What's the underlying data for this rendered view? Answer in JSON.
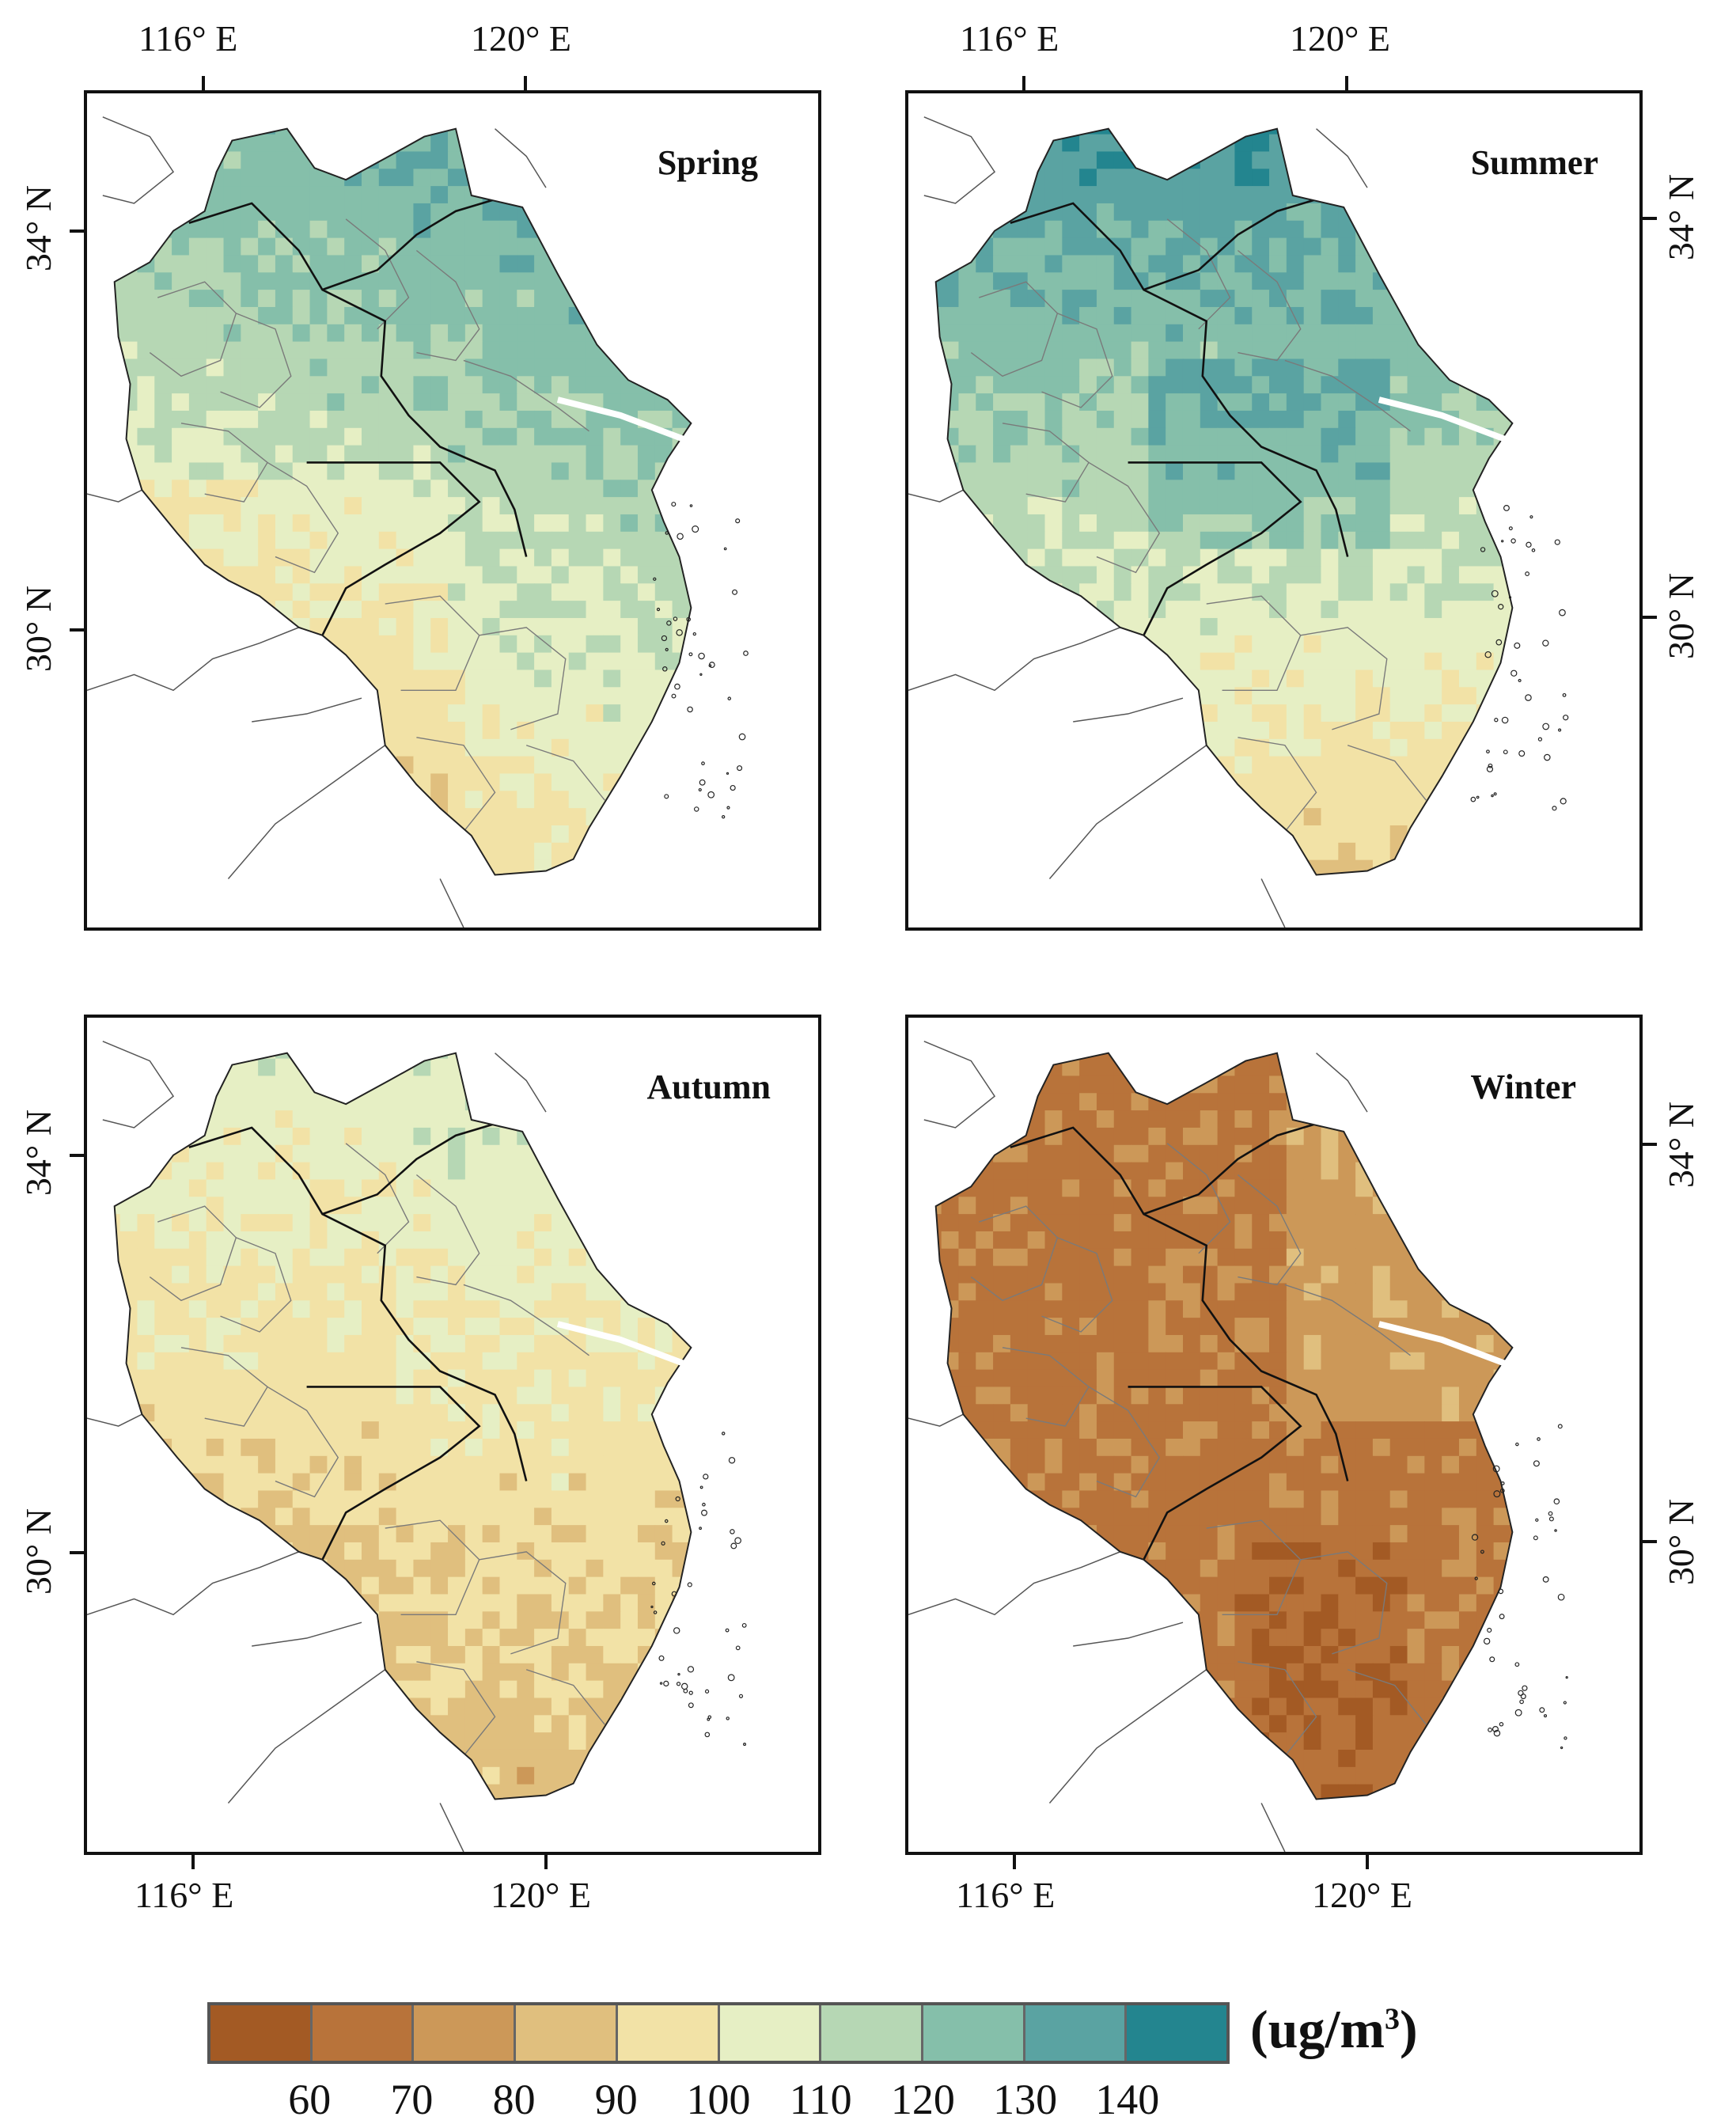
{
  "panels": [
    {
      "id": "spring",
      "season": "Spring",
      "palette_bias": 0
    },
    {
      "id": "summer",
      "season": "Summer",
      "palette_bias": 1
    },
    {
      "id": "autumn",
      "season": "Autumn",
      "palette_bias": 2
    },
    {
      "id": "winter",
      "season": "Winter",
      "palette_bias": 3
    }
  ],
  "axes": {
    "lon_left": "116° E",
    "lon_right": "120° E",
    "lat_top": "34° N",
    "lat_bottom": "30° N"
  },
  "legend": {
    "unit_text": "(ug/m",
    "unit_sup": "3",
    "unit_close": ")",
    "ticks": [
      "60",
      "70",
      "80",
      "90",
      "100",
      "110",
      "120",
      "130",
      "140"
    ],
    "colors": [
      "#a35a24",
      "#b8733a",
      "#cc9858",
      "#e0bf7e",
      "#f2e2a6",
      "#e6efc4",
      "#b6d7b4",
      "#85bfaa",
      "#5aa3a2",
      "#23858f"
    ]
  }
}
